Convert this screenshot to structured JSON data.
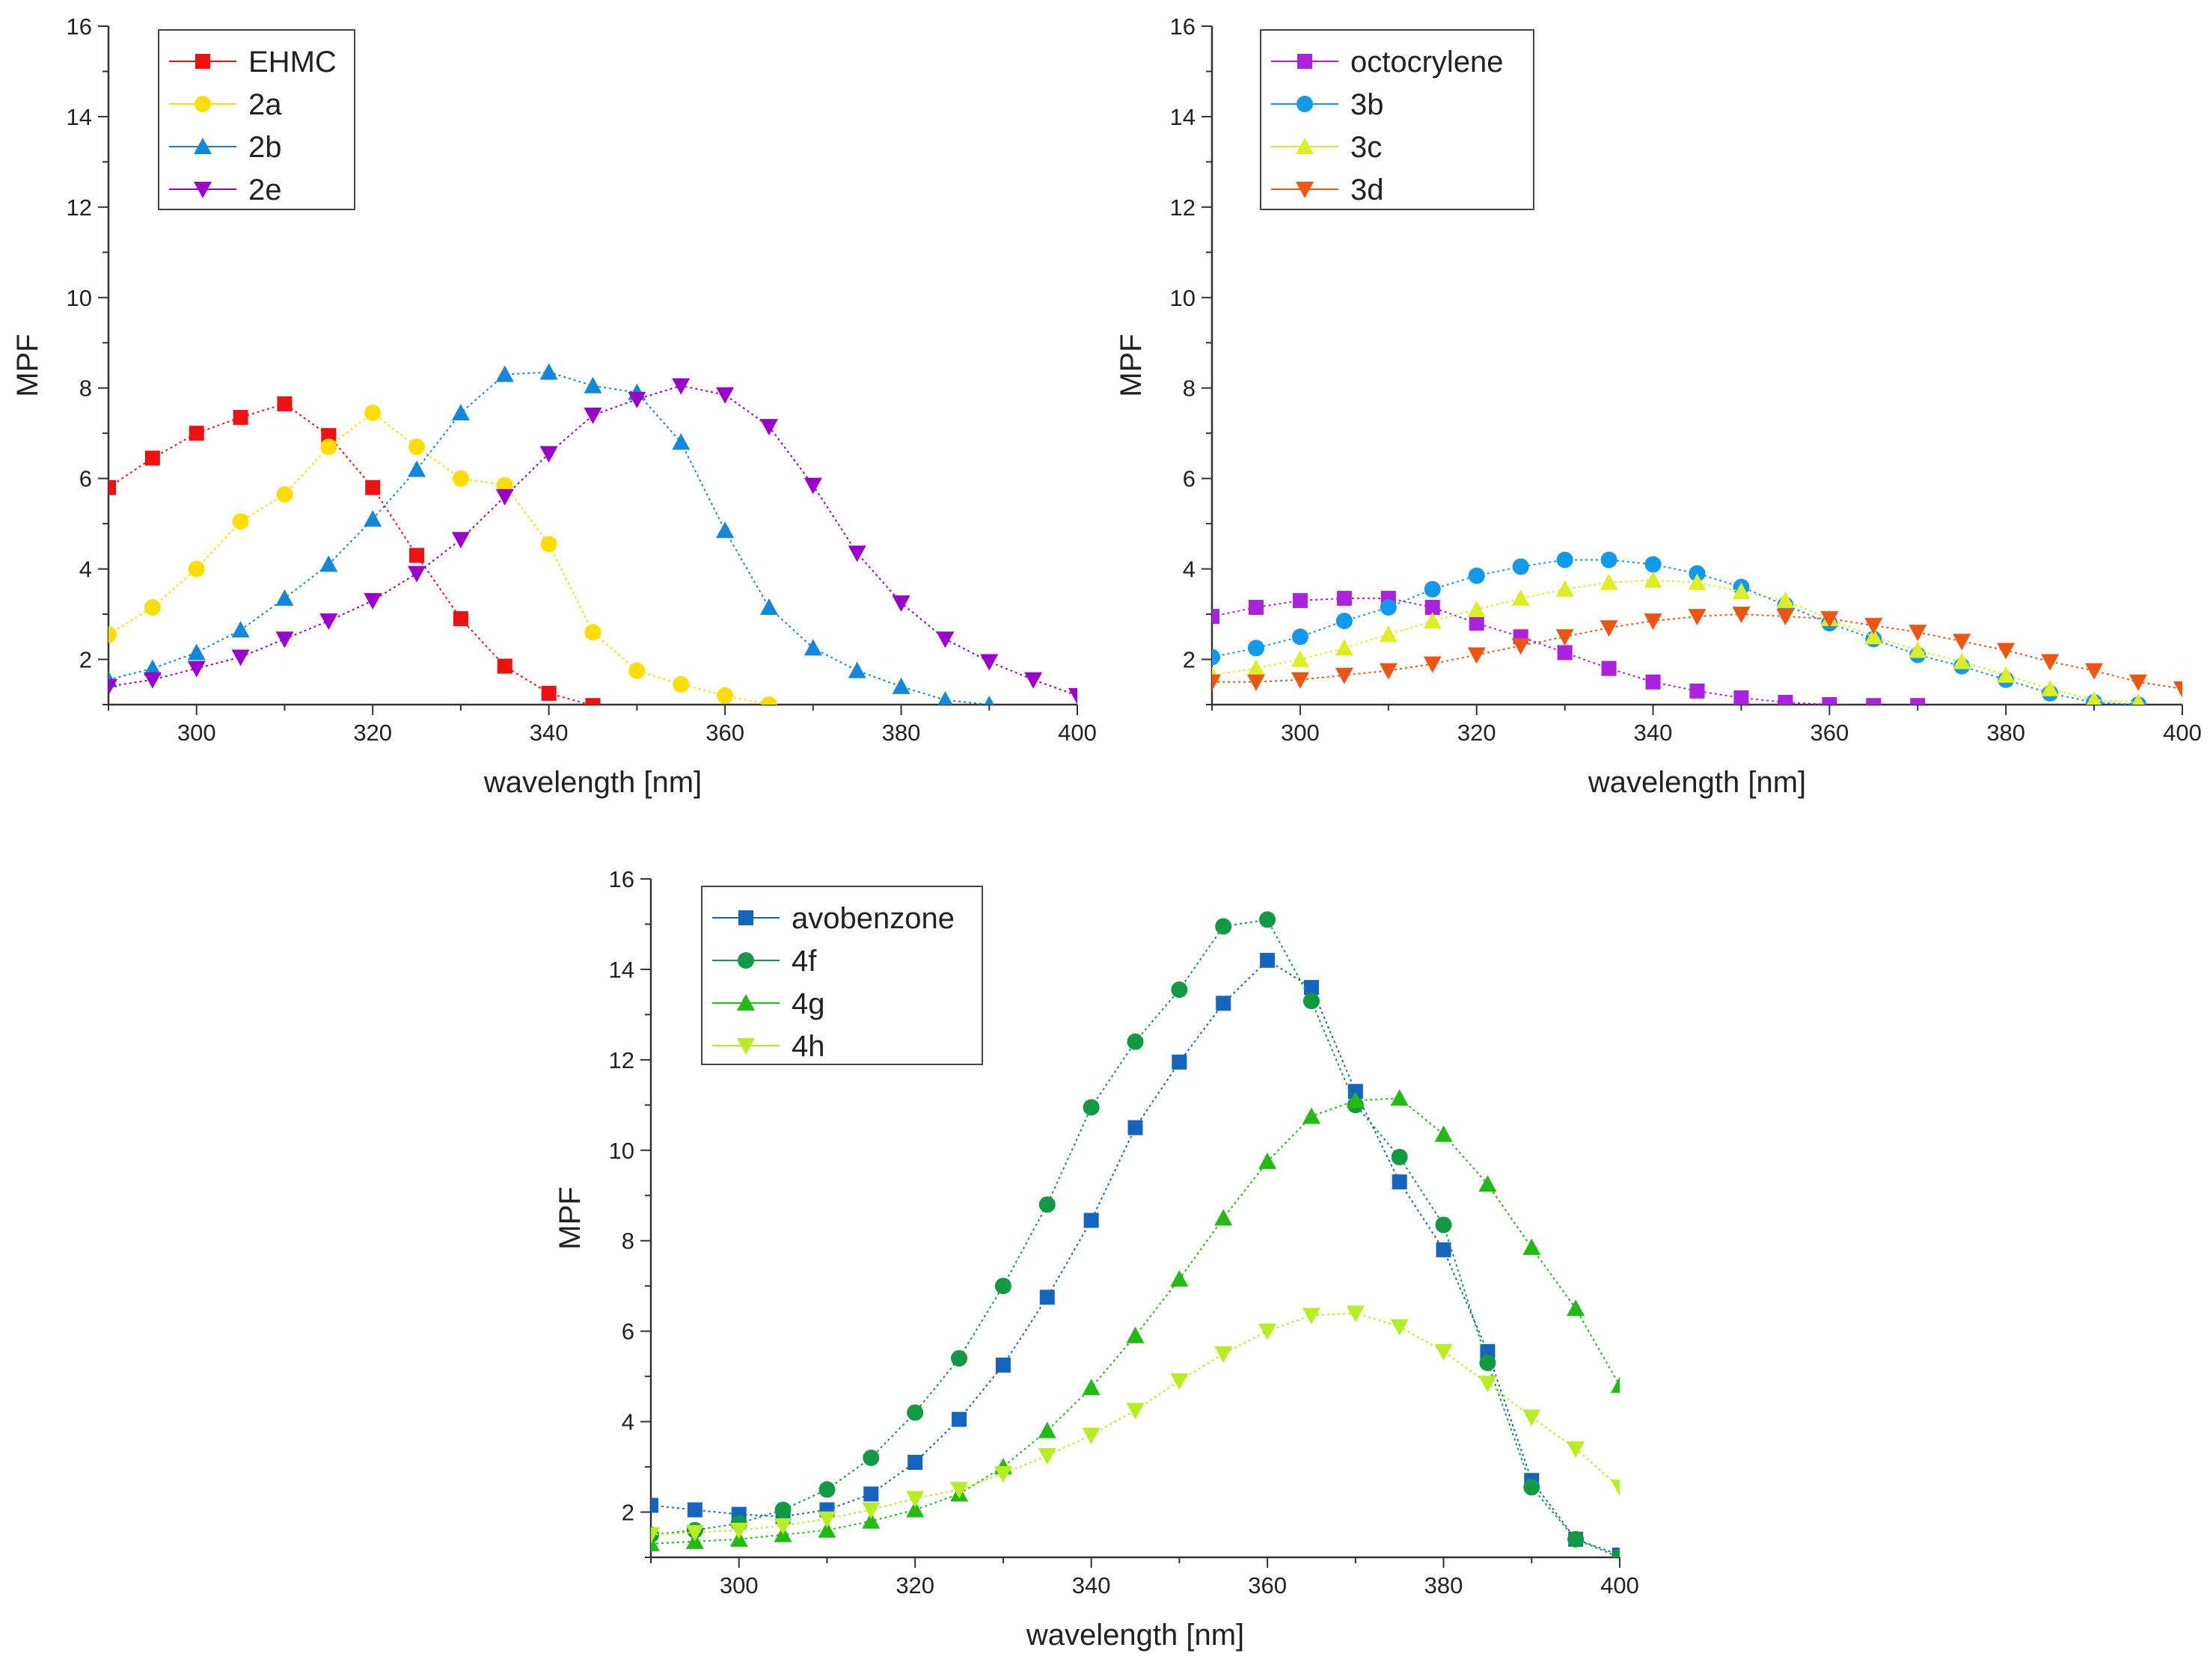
{
  "chart_data": [
    {
      "id": "a",
      "type": "line",
      "xlabel": "wavelength [nm]",
      "ylabel": "MPF",
      "xlim": [
        290,
        400
      ],
      "ylim": [
        1,
        16
      ],
      "xticks": [
        300,
        320,
        340,
        360,
        380,
        400
      ],
      "yticks": [
        2,
        4,
        6,
        8,
        10,
        12,
        14,
        16
      ],
      "legend_position": "top-left",
      "x": [
        290,
        295,
        300,
        305,
        310,
        315,
        320,
        325,
        330,
        335,
        340,
        345,
        350,
        355,
        360,
        365,
        370,
        375,
        380,
        385,
        390,
        395,
        400
      ],
      "series": [
        {
          "name": "EHMC",
          "color": "#ee1111",
          "marker": "square",
          "values": [
            5.8,
            6.45,
            7.0,
            7.35,
            7.65,
            6.95,
            5.8,
            4.3,
            2.9,
            1.85,
            1.25,
            0.98,
            null,
            null,
            null,
            null,
            null,
            null,
            null,
            null,
            null,
            null,
            null
          ]
        },
        {
          "name": "2a",
          "color": "#ffdd00",
          "marker": "circle",
          "values": [
            2.55,
            3.15,
            4.0,
            5.05,
            5.65,
            6.7,
            7.45,
            6.7,
            6.0,
            5.85,
            4.55,
            2.6,
            1.75,
            1.45,
            1.2,
            1.0,
            null,
            null,
            null,
            null,
            null,
            null,
            null
          ]
        },
        {
          "name": "2b",
          "color": "#1188dd",
          "marker": "triangle-up",
          "values": [
            1.55,
            1.8,
            2.15,
            2.65,
            3.35,
            4.1,
            5.1,
            6.2,
            7.45,
            8.3,
            8.35,
            8.05,
            7.9,
            6.8,
            4.85,
            3.15,
            2.25,
            1.75,
            1.4,
            1.1,
            1.0,
            null,
            null
          ]
        },
        {
          "name": "2e",
          "color": "#9900cc",
          "marker": "triangle-down",
          "values": [
            1.4,
            1.55,
            1.8,
            2.05,
            2.45,
            2.85,
            3.3,
            3.9,
            4.65,
            5.6,
            6.55,
            7.4,
            7.75,
            8.05,
            7.85,
            7.15,
            5.85,
            4.35,
            3.25,
            2.45,
            1.95,
            1.55,
            1.2
          ]
        }
      ]
    },
    {
      "id": "b",
      "type": "line",
      "xlabel": "wavelength [nm]",
      "ylabel": "MPF",
      "xlim": [
        290,
        400
      ],
      "ylim": [
        1,
        16
      ],
      "xticks": [
        300,
        320,
        340,
        360,
        380,
        400
      ],
      "yticks": [
        2,
        4,
        6,
        8,
        10,
        12,
        14,
        16
      ],
      "legend_position": "top-left",
      "x": [
        290,
        295,
        300,
        305,
        310,
        315,
        320,
        325,
        330,
        335,
        340,
        345,
        350,
        355,
        360,
        365,
        370,
        375,
        380,
        385,
        390,
        395,
        400
      ],
      "series": [
        {
          "name": "octocrylene",
          "color": "#aa22dd",
          "marker": "square",
          "values": [
            2.95,
            3.15,
            3.3,
            3.35,
            3.35,
            3.15,
            2.8,
            2.5,
            2.15,
            1.8,
            1.5,
            1.3,
            1.15,
            1.05,
            1.0,
            0.98,
            0.98,
            null,
            null,
            null,
            null,
            null,
            null
          ]
        },
        {
          "name": "3b",
          "color": "#1199ee",
          "marker": "circle",
          "values": [
            2.05,
            2.25,
            2.5,
            2.85,
            3.15,
            3.55,
            3.85,
            4.05,
            4.2,
            4.2,
            4.1,
            3.9,
            3.6,
            3.2,
            2.8,
            2.45,
            2.1,
            1.85,
            1.55,
            1.25,
            1.05,
            1.0,
            null
          ]
        },
        {
          "name": "3c",
          "color": "#ddee22",
          "marker": "triangle-up",
          "values": [
            1.65,
            1.8,
            2.0,
            2.25,
            2.55,
            2.85,
            3.1,
            3.35,
            3.55,
            3.7,
            3.75,
            3.7,
            3.5,
            3.3,
            2.9,
            2.5,
            2.2,
            1.95,
            1.65,
            1.35,
            1.1,
            1.05,
            null
          ]
        },
        {
          "name": "3d",
          "color": "#ee5511",
          "marker": "triangle-down",
          "values": [
            1.5,
            1.5,
            1.55,
            1.65,
            1.75,
            1.9,
            2.1,
            2.3,
            2.5,
            2.7,
            2.85,
            2.95,
            3.0,
            2.95,
            2.9,
            2.75,
            2.6,
            2.4,
            2.2,
            1.95,
            1.75,
            1.5,
            1.35
          ]
        }
      ]
    },
    {
      "id": "c",
      "type": "line",
      "xlabel": "wavelength [nm]",
      "ylabel": "MPF",
      "xlim": [
        290,
        400
      ],
      "ylim": [
        1,
        16
      ],
      "xticks": [
        300,
        320,
        340,
        360,
        380,
        400
      ],
      "yticks": [
        2,
        4,
        6,
        8,
        10,
        12,
        14,
        16
      ],
      "legend_position": "top-left",
      "x": [
        290,
        295,
        300,
        305,
        310,
        315,
        320,
        325,
        330,
        335,
        340,
        345,
        350,
        355,
        360,
        365,
        370,
        375,
        380,
        385,
        390,
        395,
        400
      ],
      "series": [
        {
          "name": "avobenzone",
          "color": "#1565c0",
          "marker": "square",
          "values": [
            2.15,
            2.05,
            1.95,
            1.9,
            2.05,
            2.4,
            3.1,
            4.05,
            5.25,
            6.75,
            8.45,
            10.5,
            11.95,
            13.25,
            14.2,
            13.6,
            11.3,
            9.3,
            7.8,
            5.55,
            2.7,
            1.4,
            1.05
          ]
        },
        {
          "name": "4f",
          "color": "#119944",
          "marker": "circle",
          "values": [
            1.5,
            1.6,
            1.75,
            2.05,
            2.5,
            3.2,
            4.2,
            5.4,
            7.0,
            8.8,
            10.95,
            12.4,
            13.55,
            14.95,
            15.1,
            13.3,
            11.0,
            9.85,
            8.35,
            5.3,
            2.55,
            1.4,
            1.0
          ]
        },
        {
          "name": "4g",
          "color": "#22bb11",
          "marker": "triangle-up",
          "values": [
            1.3,
            1.35,
            1.4,
            1.5,
            1.6,
            1.8,
            2.05,
            2.4,
            3.0,
            3.8,
            4.75,
            5.9,
            7.15,
            8.5,
            9.75,
            10.75,
            11.1,
            11.15,
            10.35,
            9.25,
            7.85,
            6.5,
            4.8
          ]
        },
        {
          "name": "4h",
          "color": "#b6ee22",
          "marker": "triangle-down",
          "values": [
            1.5,
            1.55,
            1.6,
            1.7,
            1.85,
            2.05,
            2.3,
            2.5,
            2.85,
            3.25,
            3.7,
            4.25,
            4.9,
            5.5,
            6.0,
            6.35,
            6.4,
            6.1,
            5.55,
            4.85,
            4.1,
            3.4,
            2.55
          ]
        }
      ]
    }
  ]
}
